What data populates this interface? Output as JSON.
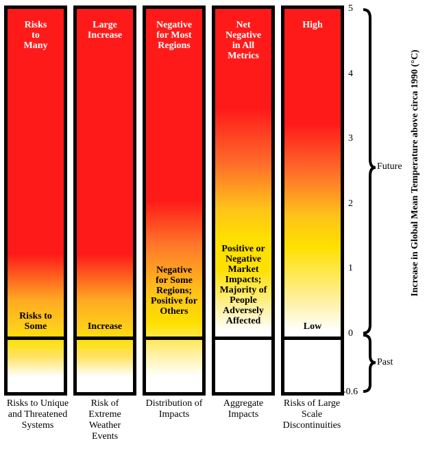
{
  "columns": [
    {
      "caption": "Risks to Unique and Threatened Systems",
      "top_label": "Risks to Many",
      "low_label": "Risks to Some"
    },
    {
      "caption": "Risk of Extreme Weather Events",
      "top_label": "Large Increase",
      "low_label": "Increase"
    },
    {
      "caption": "Distribution of Impacts",
      "top_label": "Negative for Most Regions",
      "low_label": "Negative for Some Regions; Positive for Others"
    },
    {
      "caption": "Aggregate Impacts",
      "top_label": "Net Negative in All Metrics",
      "low_label": "Positive or Negative Market Impacts; Majority of People Adversely Affected"
    },
    {
      "caption": "Risks of Large Scale Discontinuities",
      "top_label": "High",
      "low_label": "Low"
    }
  ],
  "axis": {
    "label": "Increase in Global Mean Temperature above circa 1990 (°C)",
    "ticks": [
      "5",
      "4",
      "3",
      "2",
      "1",
      "0",
      "-0.6"
    ],
    "future_label": "Future",
    "past_label": "Past"
  },
  "colors": {
    "red": "#ff1a1a",
    "yellow": "#ffd700",
    "white": "#ffffff",
    "border": "#000000"
  }
}
